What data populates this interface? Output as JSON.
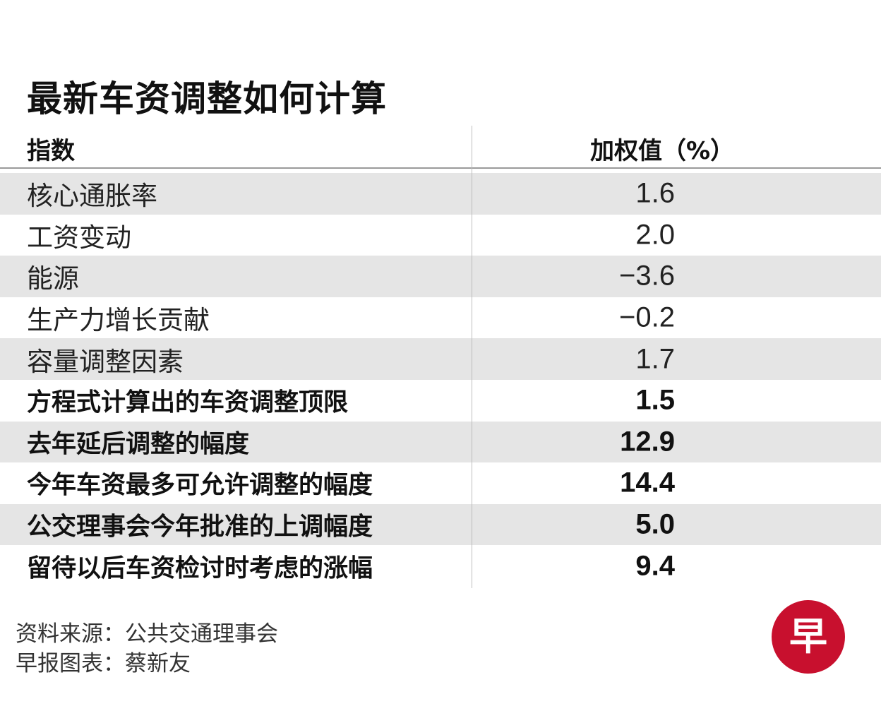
{
  "title": "最新车资调整如何计算",
  "header": {
    "index_label": "指数",
    "value_label": "加权值（%）"
  },
  "chart_data": {
    "type": "table",
    "title": "最新车资调整如何计算",
    "columns": [
      "指数",
      "加权值（%）"
    ],
    "rows": [
      {
        "label": "核心通胀率",
        "value": "1.6",
        "bold": false
      },
      {
        "label": "工资变动",
        "value": "2.0",
        "bold": false
      },
      {
        "label": "能源",
        "value": "−3.6",
        "bold": false
      },
      {
        "label": "生产力增长贡献",
        "value": "−0.2",
        "bold": false
      },
      {
        "label": "容量调整因素",
        "value": "1.7",
        "bold": false
      },
      {
        "label": "方程式计算出的车资调整顶限",
        "value": "1.5",
        "bold": true
      },
      {
        "label": "去年延后调整的幅度",
        "value": "12.9",
        "bold": true
      },
      {
        "label": "今年车资最多可允许调整的幅度",
        "value": "14.4",
        "bold": true
      },
      {
        "label": "公交理事会今年批准的上调幅度",
        "value": "5.0",
        "bold": true
      },
      {
        "label": "留待以后车资检讨时考虑的涨幅",
        "value": "9.4",
        "bold": true
      }
    ]
  },
  "footer": {
    "source": "资料来源：公共交通理事会",
    "credit": "早报图表：蔡新友"
  },
  "logo": {
    "text": "早",
    "color": "#c8102e",
    "icon": "zaobao-logo-icon"
  }
}
